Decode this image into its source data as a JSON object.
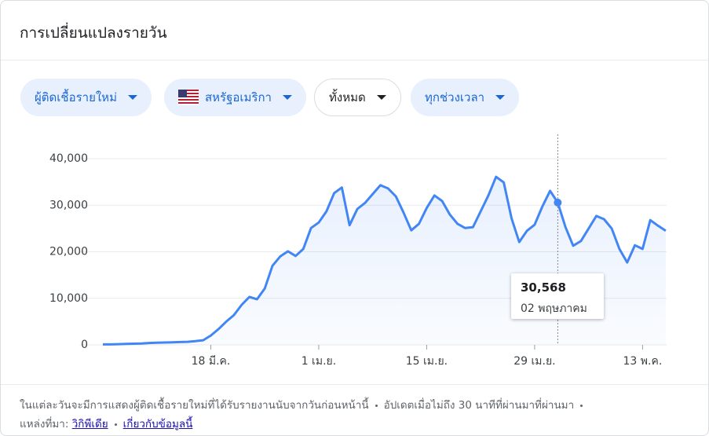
{
  "header": {
    "title": "การเปลี่ยนแปลงรายวัน"
  },
  "filters": [
    "ผู้ติดเชื้อรายใหม่",
    "สหรัฐอเมริกา",
    "ทั้งหมด",
    "ทุกช่วงเวลา"
  ],
  "footer": {
    "note": "ในแต่ละวันจะมีการแสดงผู้ติดเชื้อรายใหม่ที่ได้รับรายงานนับจากวันก่อนหน้านี้",
    "updated": "อัปเดตเมื่อไม่ถึง 30 นาทีที่ผ่านมาที่ผ่านมา",
    "source_label": "แหล่งที่มา:",
    "source_link": "วิกิพีเดีย",
    "about_link": "เกี่ยวกับข้อมูลนี้"
  },
  "chart_data": {
    "type": "line",
    "categories": [
      null,
      null,
      null,
      null,
      null,
      null,
      null,
      null,
      null,
      null,
      null,
      null,
      null,
      null,
      "18 มี.ค.",
      null,
      null,
      null,
      null,
      null,
      null,
      null,
      null,
      null,
      null,
      null,
      null,
      null,
      "1 เม.ย.",
      null,
      null,
      null,
      null,
      null,
      null,
      null,
      null,
      null,
      null,
      null,
      null,
      null,
      "15 เม.ย.",
      null,
      null,
      null,
      null,
      null,
      null,
      null,
      null,
      null,
      null,
      null,
      null,
      null,
      "29 เม.ย.",
      null,
      null,
      null,
      null,
      null,
      null,
      null,
      null,
      null,
      null,
      null,
      null,
      null,
      "13 พ.ค.",
      null,
      null,
      null
    ],
    "series": [
      {
        "color": "#4285f4",
        "values": [
          100,
          100,
          150,
          200,
          250,
          300,
          400,
          450,
          500,
          550,
          600,
          650,
          800,
          1000,
          2000,
          3400,
          5000,
          6400,
          8600,
          10300,
          9800,
          12100,
          17000,
          19000,
          20100,
          19100,
          20600,
          25100,
          26300,
          28700,
          32600,
          33800,
          25700,
          29200,
          30500,
          32400,
          34300,
          33600,
          31900,
          28400,
          24600,
          26000,
          29400,
          32100,
          30900,
          28000,
          26000,
          25100,
          25300,
          28700,
          32100,
          36100,
          34900,
          27200,
          22100,
          24500,
          25800,
          29700,
          33100,
          30568,
          25300,
          21300,
          22300,
          25000,
          27700,
          27000,
          25000,
          20600,
          17700,
          21400,
          20600,
          26800,
          25600,
          24500
        ]
      }
    ],
    "ylim": [
      0,
      40000
    ],
    "yticks": [
      0,
      {
        "value": 10000,
        "label": "10,000"
      },
      {
        "value": 20000,
        "label": "20,000"
      },
      {
        "value": 30000,
        "label": "30,000"
      },
      {
        "value": 40000,
        "label": "40,000"
      }
    ],
    "grid": true,
    "tooltip": {
      "label": "30,568",
      "date": "02 พฤษภาคม"
    }
  }
}
